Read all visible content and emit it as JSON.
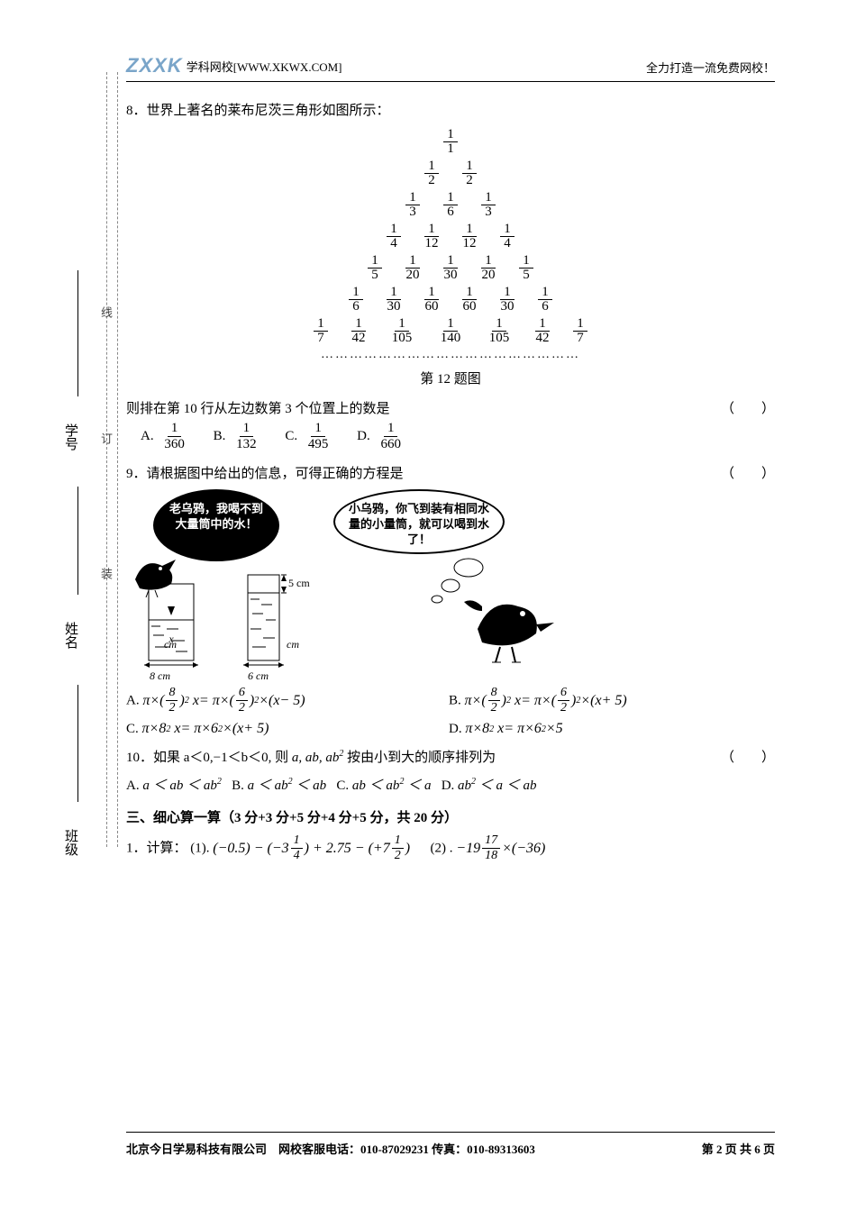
{
  "header": {
    "logo_text": "ZXXK",
    "site": "学科网校[WWW.XKWX.COM]",
    "slogan": "全力打造一流免费网校！"
  },
  "q8": {
    "text": "8．世界上著名的莱布尼茨三角形如图所示：",
    "triangle": [
      [
        {
          "n": "1",
          "d": "1"
        }
      ],
      [
        {
          "n": "1",
          "d": "2"
        },
        {
          "n": "1",
          "d": "2"
        }
      ],
      [
        {
          "n": "1",
          "d": "3"
        },
        {
          "n": "1",
          "d": "6"
        },
        {
          "n": "1",
          "d": "3"
        }
      ],
      [
        {
          "n": "1",
          "d": "4"
        },
        {
          "n": "1",
          "d": "12"
        },
        {
          "n": "1",
          "d": "12"
        },
        {
          "n": "1",
          "d": "4"
        }
      ],
      [
        {
          "n": "1",
          "d": "5"
        },
        {
          "n": "1",
          "d": "20"
        },
        {
          "n": "1",
          "d": "30"
        },
        {
          "n": "1",
          "d": "20"
        },
        {
          "n": "1",
          "d": "5"
        }
      ],
      [
        {
          "n": "1",
          "d": "6"
        },
        {
          "n": "1",
          "d": "30"
        },
        {
          "n": "1",
          "d": "60"
        },
        {
          "n": "1",
          "d": "60"
        },
        {
          "n": "1",
          "d": "30"
        },
        {
          "n": "1",
          "d": "6"
        }
      ],
      [
        {
          "n": "1",
          "d": "7"
        },
        {
          "n": "1",
          "d": "42"
        },
        {
          "n": "1",
          "d": "105"
        },
        {
          "n": "1",
          "d": "140"
        },
        {
          "n": "1",
          "d": "105"
        },
        {
          "n": "1",
          "d": "42"
        },
        {
          "n": "1",
          "d": "7"
        }
      ]
    ],
    "dots": "………………………………………………",
    "fig_label": "第 12 题图",
    "stem": "则排在第 10 行从左边数第 3 个位置上的数是",
    "paren": "（　　）",
    "opts": {
      "A": {
        "n": "1",
        "d": "360"
      },
      "B": {
        "n": "1",
        "d": "132"
      },
      "C": {
        "n": "1",
        "d": "495"
      },
      "D": {
        "n": "1",
        "d": "660"
      }
    }
  },
  "q9": {
    "stem": "9．请根据图中给出的信息，可得正确的方程是",
    "paren": "（　　）",
    "bubble1": "老乌鸦，我喝不到大量筒中的水！",
    "bubble2": "小乌鸦，你飞到装有相同水量的小量筒，就可以喝到水了！",
    "label_5cm": "5 cm",
    "label_cm1": "cm",
    "label_cm2": "cm",
    "label_8cm": "8 cm",
    "label_6cm": "6 cm",
    "optA_label": "A.",
    "optA": "π×(8/2)² x = π×(6/2)² ×(x − 5)",
    "optB_label": "B.",
    "optB": "π×(8/2)² x = π×(6/2)² ×(x + 5)",
    "optC_label": "C.",
    "optC": "π×8² x = π×6² ×(x + 5)",
    "optD_label": "D.",
    "optD": "π×8² x = π×6² ×5"
  },
  "q10": {
    "stem_pre": "10．如果 a＜0,−1＜b＜0, 则 ",
    "stem_mid": " 按由小到大的顺序排列为",
    "paren": "（　　）",
    "A_label": "A.",
    "A": "a ＜ ab ＜ ab²",
    "B_label": "B.",
    "B": "a ＜ ab² ＜ ab",
    "C_label": "C.",
    "C": "ab ＜ ab² ＜ a",
    "D_label": "D.",
    "D": "ab² ＜ a ＜ ab"
  },
  "section3": "三、细心算一算（3 分+3 分+5 分+4 分+5 分，共 20 分）",
  "calc": {
    "label": "1．计算：",
    "p1_label": "(1).",
    "p1": "(−0.5) − (−3¼) + 2.75 − (+7½)",
    "p2_label": "(2) .",
    "p2": "−19 17/18 ×(−36)"
  },
  "margin": {
    "xuehao": "学号",
    "xingming": "姓名",
    "banji": "班级"
  },
  "binding": {
    "xian": "线",
    "ding": "订",
    "zhuang": "装"
  },
  "footer": {
    "left": "北京今日学易科技有限公司　网校客服电话：010-87029231 传真：010-89313603",
    "right": "第 2 页 共 6 页"
  }
}
